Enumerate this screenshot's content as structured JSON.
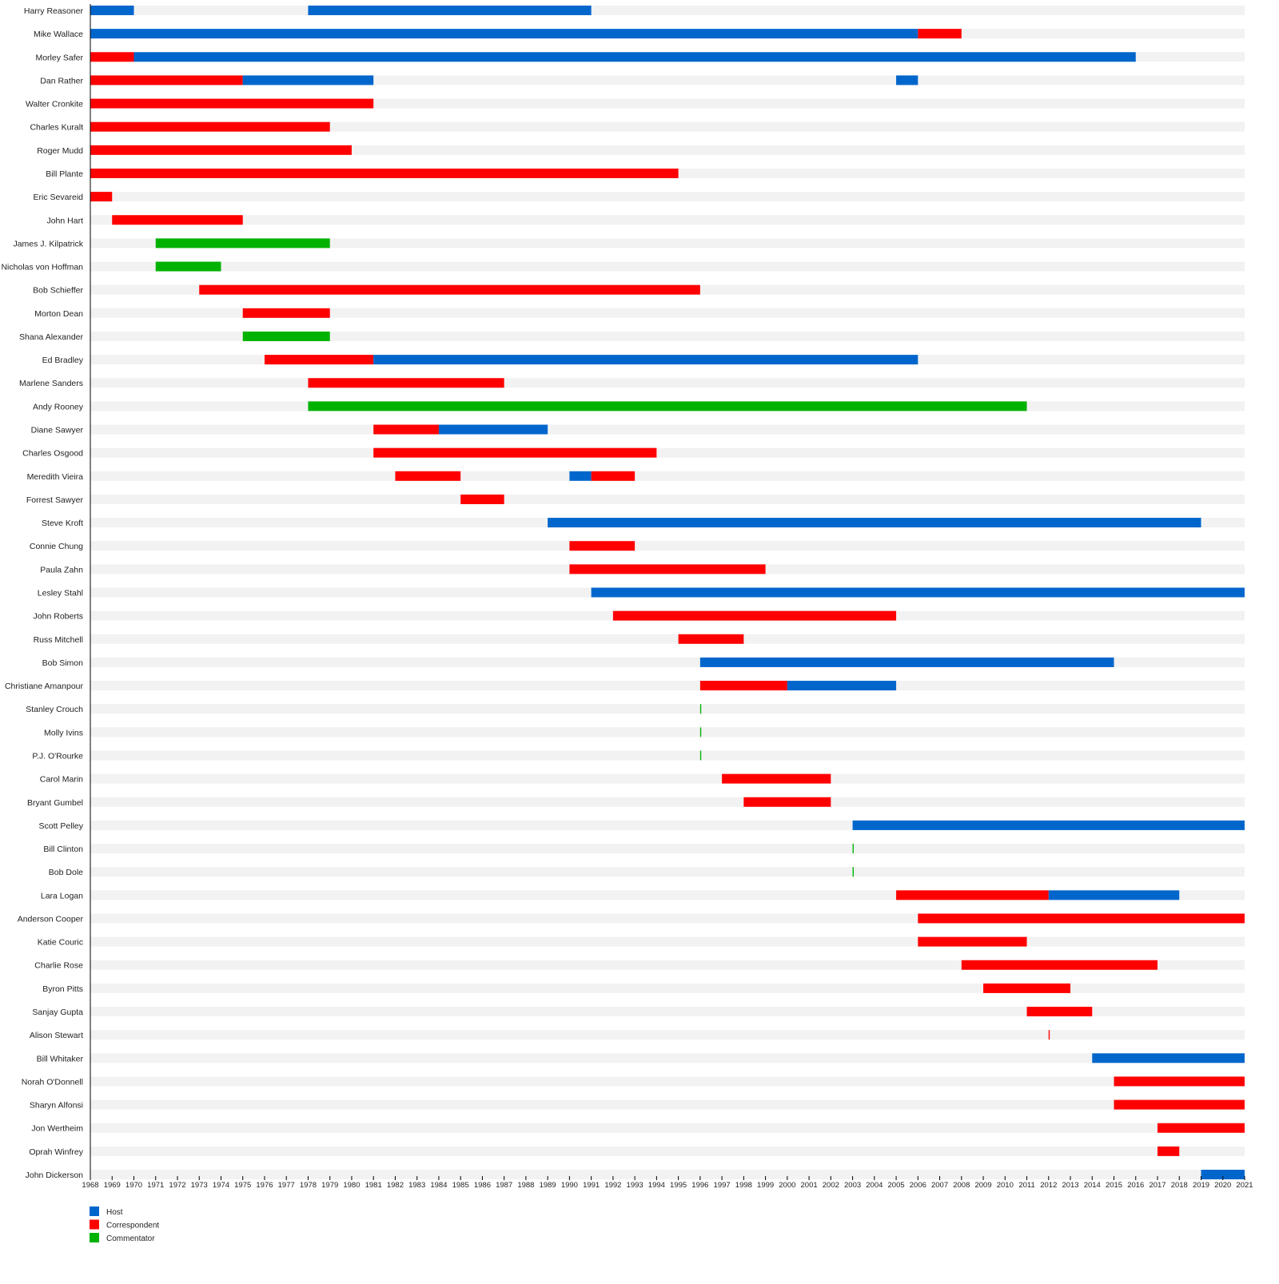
{
  "chart_data": {
    "type": "timeline",
    "title": "",
    "xlabel": "",
    "ylabel": "",
    "xlim": [
      1968,
      2021
    ],
    "grid": false,
    "legend_position": "bottom-left",
    "colors": {
      "Host": "#0066cc",
      "Correspondent": "#ff0000",
      "Commentator": "#00b200",
      "row_bg": "#f2f2f2"
    },
    "legend": [
      "Host",
      "Correspondent",
      "Commentator"
    ],
    "rows": [
      {
        "name": "Harry Reasoner",
        "spans": [
          [
            "Host",
            1968,
            1970
          ],
          [
            "Host",
            1978,
            1991
          ]
        ]
      },
      {
        "name": "Mike Wallace",
        "spans": [
          [
            "Host",
            1968,
            2006
          ],
          [
            "Correspondent",
            2006,
            2008
          ]
        ]
      },
      {
        "name": "Morley Safer",
        "spans": [
          [
            "Correspondent",
            1968,
            1970
          ],
          [
            "Host",
            1970,
            2016
          ]
        ]
      },
      {
        "name": "Dan Rather",
        "spans": [
          [
            "Correspondent",
            1968,
            1975
          ],
          [
            "Host",
            1975,
            1981
          ],
          [
            "Host",
            2005,
            2006
          ]
        ]
      },
      {
        "name": "Walter Cronkite",
        "spans": [
          [
            "Correspondent",
            1968,
            1981
          ]
        ]
      },
      {
        "name": "Charles Kuralt",
        "spans": [
          [
            "Correspondent",
            1968,
            1979
          ]
        ]
      },
      {
        "name": "Roger Mudd",
        "spans": [
          [
            "Correspondent",
            1968,
            1980
          ]
        ]
      },
      {
        "name": "Bill Plante",
        "spans": [
          [
            "Correspondent",
            1968,
            1995
          ]
        ]
      },
      {
        "name": "Eric Sevareid",
        "spans": [
          [
            "Correspondent",
            1968,
            1969
          ]
        ]
      },
      {
        "name": "John Hart",
        "spans": [
          [
            "Correspondent",
            1969,
            1975
          ]
        ]
      },
      {
        "name": "James J. Kilpatrick",
        "spans": [
          [
            "Commentator",
            1971,
            1979
          ]
        ]
      },
      {
        "name": "Nicholas von Hoffman",
        "spans": [
          [
            "Commentator",
            1971,
            1974
          ]
        ]
      },
      {
        "name": "Bob Schieffer",
        "spans": [
          [
            "Correspondent",
            1973,
            1996
          ]
        ]
      },
      {
        "name": "Morton Dean",
        "spans": [
          [
            "Correspondent",
            1975,
            1979
          ]
        ]
      },
      {
        "name": "Shana Alexander",
        "spans": [
          [
            "Commentator",
            1975,
            1979
          ]
        ]
      },
      {
        "name": "Ed Bradley",
        "spans": [
          [
            "Correspondent",
            1976,
            1981
          ],
          [
            "Host",
            1981,
            2006
          ]
        ]
      },
      {
        "name": "Marlene Sanders",
        "spans": [
          [
            "Correspondent",
            1978,
            1987
          ]
        ]
      },
      {
        "name": "Andy Rooney",
        "spans": [
          [
            "Commentator",
            1978,
            2011
          ]
        ]
      },
      {
        "name": "Diane Sawyer",
        "spans": [
          [
            "Correspondent",
            1981,
            1984
          ],
          [
            "Host",
            1984,
            1989
          ]
        ]
      },
      {
        "name": "Charles Osgood",
        "spans": [
          [
            "Correspondent",
            1981,
            1994
          ]
        ]
      },
      {
        "name": "Meredith Vieira",
        "spans": [
          [
            "Correspondent",
            1982,
            1985
          ],
          [
            "Host",
            1990,
            1991
          ],
          [
            "Correspondent",
            1991,
            1993
          ]
        ]
      },
      {
        "name": "Forrest Sawyer",
        "spans": [
          [
            "Correspondent",
            1985,
            1987
          ]
        ]
      },
      {
        "name": "Steve Kroft",
        "spans": [
          [
            "Host",
            1989,
            2019
          ]
        ]
      },
      {
        "name": "Connie Chung",
        "spans": [
          [
            "Correspondent",
            1990,
            1993
          ]
        ]
      },
      {
        "name": "Paula Zahn",
        "spans": [
          [
            "Correspondent",
            1990,
            1999
          ]
        ]
      },
      {
        "name": "Lesley Stahl",
        "spans": [
          [
            "Host",
            1991,
            2021
          ]
        ]
      },
      {
        "name": "John Roberts",
        "spans": [
          [
            "Correspondent",
            1992,
            2005
          ]
        ]
      },
      {
        "name": "Russ Mitchell",
        "spans": [
          [
            "Correspondent",
            1995,
            1998
          ]
        ]
      },
      {
        "name": "Bob Simon",
        "spans": [
          [
            "Host",
            1996,
            2015
          ]
        ]
      },
      {
        "name": "Christiane Amanpour",
        "spans": [
          [
            "Correspondent",
            1996,
            2000
          ],
          [
            "Host",
            2000,
            2005
          ]
        ]
      },
      {
        "name": "Stanley Crouch",
        "spans": [
          [
            "Commentator",
            1996,
            1996.05
          ]
        ]
      },
      {
        "name": "Molly Ivins",
        "spans": [
          [
            "Commentator",
            1996,
            1996.05
          ]
        ]
      },
      {
        "name": "P.J. O'Rourke",
        "spans": [
          [
            "Commentator",
            1996,
            1996.05
          ]
        ]
      },
      {
        "name": "Carol Marin",
        "spans": [
          [
            "Correspondent",
            1997,
            2002
          ]
        ]
      },
      {
        "name": "Bryant Gumbel",
        "spans": [
          [
            "Correspondent",
            1998,
            2002
          ]
        ]
      },
      {
        "name": "Scott Pelley",
        "spans": [
          [
            "Host",
            2003,
            2021
          ]
        ]
      },
      {
        "name": "Bill Clinton",
        "spans": [
          [
            "Commentator",
            2003,
            2003.05
          ]
        ]
      },
      {
        "name": "Bob Dole",
        "spans": [
          [
            "Commentator",
            2003,
            2003.05
          ]
        ]
      },
      {
        "name": "Lara Logan",
        "spans": [
          [
            "Correspondent",
            2005,
            2012
          ],
          [
            "Host",
            2012,
            2018
          ]
        ]
      },
      {
        "name": "Anderson Cooper",
        "spans": [
          [
            "Correspondent",
            2006,
            2021
          ]
        ]
      },
      {
        "name": "Katie Couric",
        "spans": [
          [
            "Correspondent",
            2006,
            2011
          ]
        ]
      },
      {
        "name": "Charlie Rose",
        "spans": [
          [
            "Correspondent",
            2008,
            2017
          ]
        ]
      },
      {
        "name": "Byron Pitts",
        "spans": [
          [
            "Correspondent",
            2009,
            2013
          ]
        ]
      },
      {
        "name": "Sanjay Gupta",
        "spans": [
          [
            "Correspondent",
            2011,
            2014
          ]
        ]
      },
      {
        "name": "Alison Stewart",
        "spans": [
          [
            "Correspondent",
            2012,
            2012.05
          ]
        ]
      },
      {
        "name": "Bill Whitaker",
        "spans": [
          [
            "Host",
            2014,
            2021
          ]
        ]
      },
      {
        "name": "Norah O'Donnell",
        "spans": [
          [
            "Correspondent",
            2015,
            2021
          ]
        ]
      },
      {
        "name": "Sharyn Alfonsi",
        "spans": [
          [
            "Correspondent",
            2015,
            2021
          ]
        ]
      },
      {
        "name": "Jon Wertheim",
        "spans": [
          [
            "Correspondent",
            2017,
            2021
          ]
        ]
      },
      {
        "name": "Oprah Winfrey",
        "spans": [
          [
            "Correspondent",
            2017,
            2018
          ]
        ]
      },
      {
        "name": "John Dickerson",
        "spans": [
          [
            "Host",
            2019,
            2021
          ]
        ]
      }
    ]
  }
}
